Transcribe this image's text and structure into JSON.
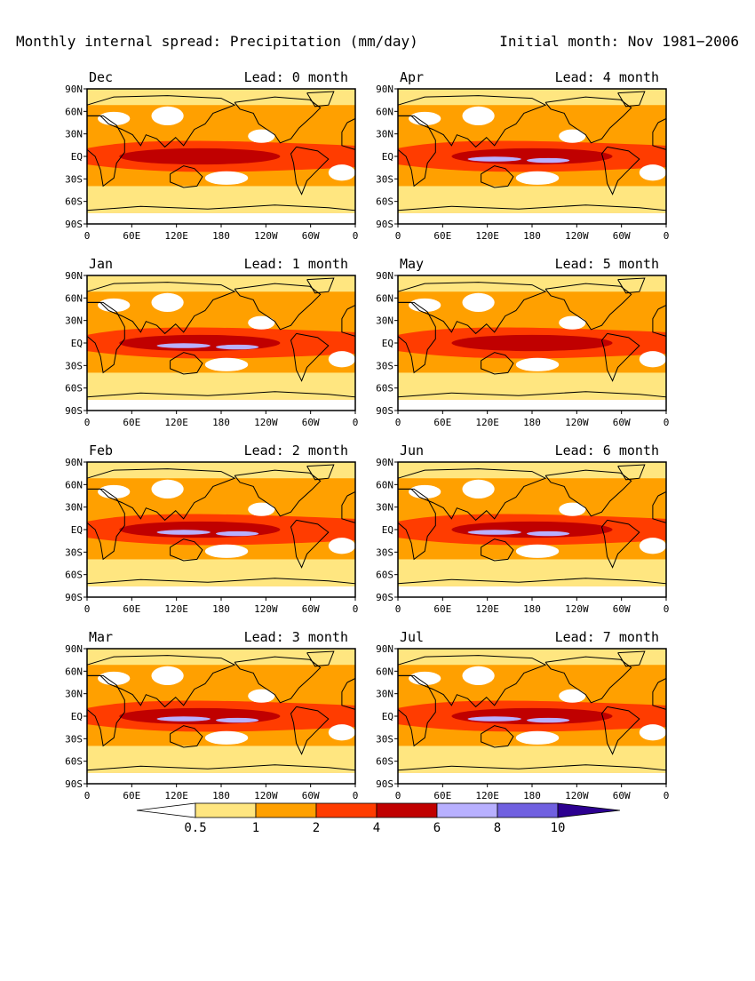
{
  "figure": {
    "title_left": "Monthly internal spread: Precipitation (mm/day)",
    "title_right": "Initial month: Nov 1981−2006"
  },
  "axes": {
    "lat_ticks": [
      "90N",
      "60N",
      "30N",
      "EQ",
      "30S",
      "60S",
      "90S"
    ],
    "lon_ticks_default": [
      "0",
      "60E",
      "120E",
      "180",
      "120W",
      "60W",
      "0"
    ],
    "lon_ticks_jul": [
      "0",
      "60E",
      "120E",
      "180",
      "120W",
      "60W",
      "0"
    ]
  },
  "panels": [
    {
      "month": "Dec",
      "lead": "Lead: 0 month"
    },
    {
      "month": "Apr",
      "lead": "Lead: 4 month"
    },
    {
      "month": "Jan",
      "lead": "Lead: 1 month"
    },
    {
      "month": "May",
      "lead": "Lead: 5 month"
    },
    {
      "month": "Feb",
      "lead": "Lead: 2 month"
    },
    {
      "month": "Jun",
      "lead": "Lead: 6 month"
    },
    {
      "month": "Mar",
      "lead": "Lead: 3 month"
    },
    {
      "month": "Jul",
      "lead": "Lead: 7 month"
    }
  ],
  "colorbar": {
    "labels": [
      "0.5",
      "1",
      "2",
      "4",
      "6",
      "8",
      "10"
    ],
    "colors": [
      "#ffffff",
      "#ffe680",
      "#ffa000",
      "#ff3c00",
      "#c00000",
      "#b8b0ff",
      "#7060e0",
      "#2c0090"
    ]
  }
}
